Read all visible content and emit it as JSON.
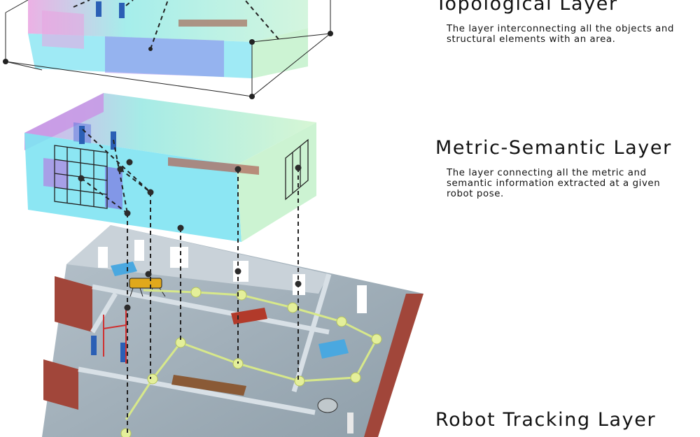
{
  "layers": [
    {
      "title": "Topological Layer",
      "description": "The layer interconnecting all the objects and structural elements with an area."
    },
    {
      "title": "Metric-Semantic Layer",
      "description": "The layer connecting all the metric and semantic information extracted at a given robot pose."
    },
    {
      "title": "Robot Tracking Layer"
    }
  ],
  "colors": {
    "room_cyan": "#7fe3f2",
    "room_violet": "#8a72e8",
    "room_pink": "#e9a3e0",
    "room_green": "#bff0c8",
    "floor_concrete": "#9aa9b5",
    "wall_concrete": "#c9d2d9",
    "brick": "#a1463a",
    "graph_node": "#333333",
    "trajectory": "#d7e88a"
  },
  "icons": [
    "quadruped-robot-icon",
    "worker-icon",
    "pallet-icon",
    "bench-icon"
  ]
}
